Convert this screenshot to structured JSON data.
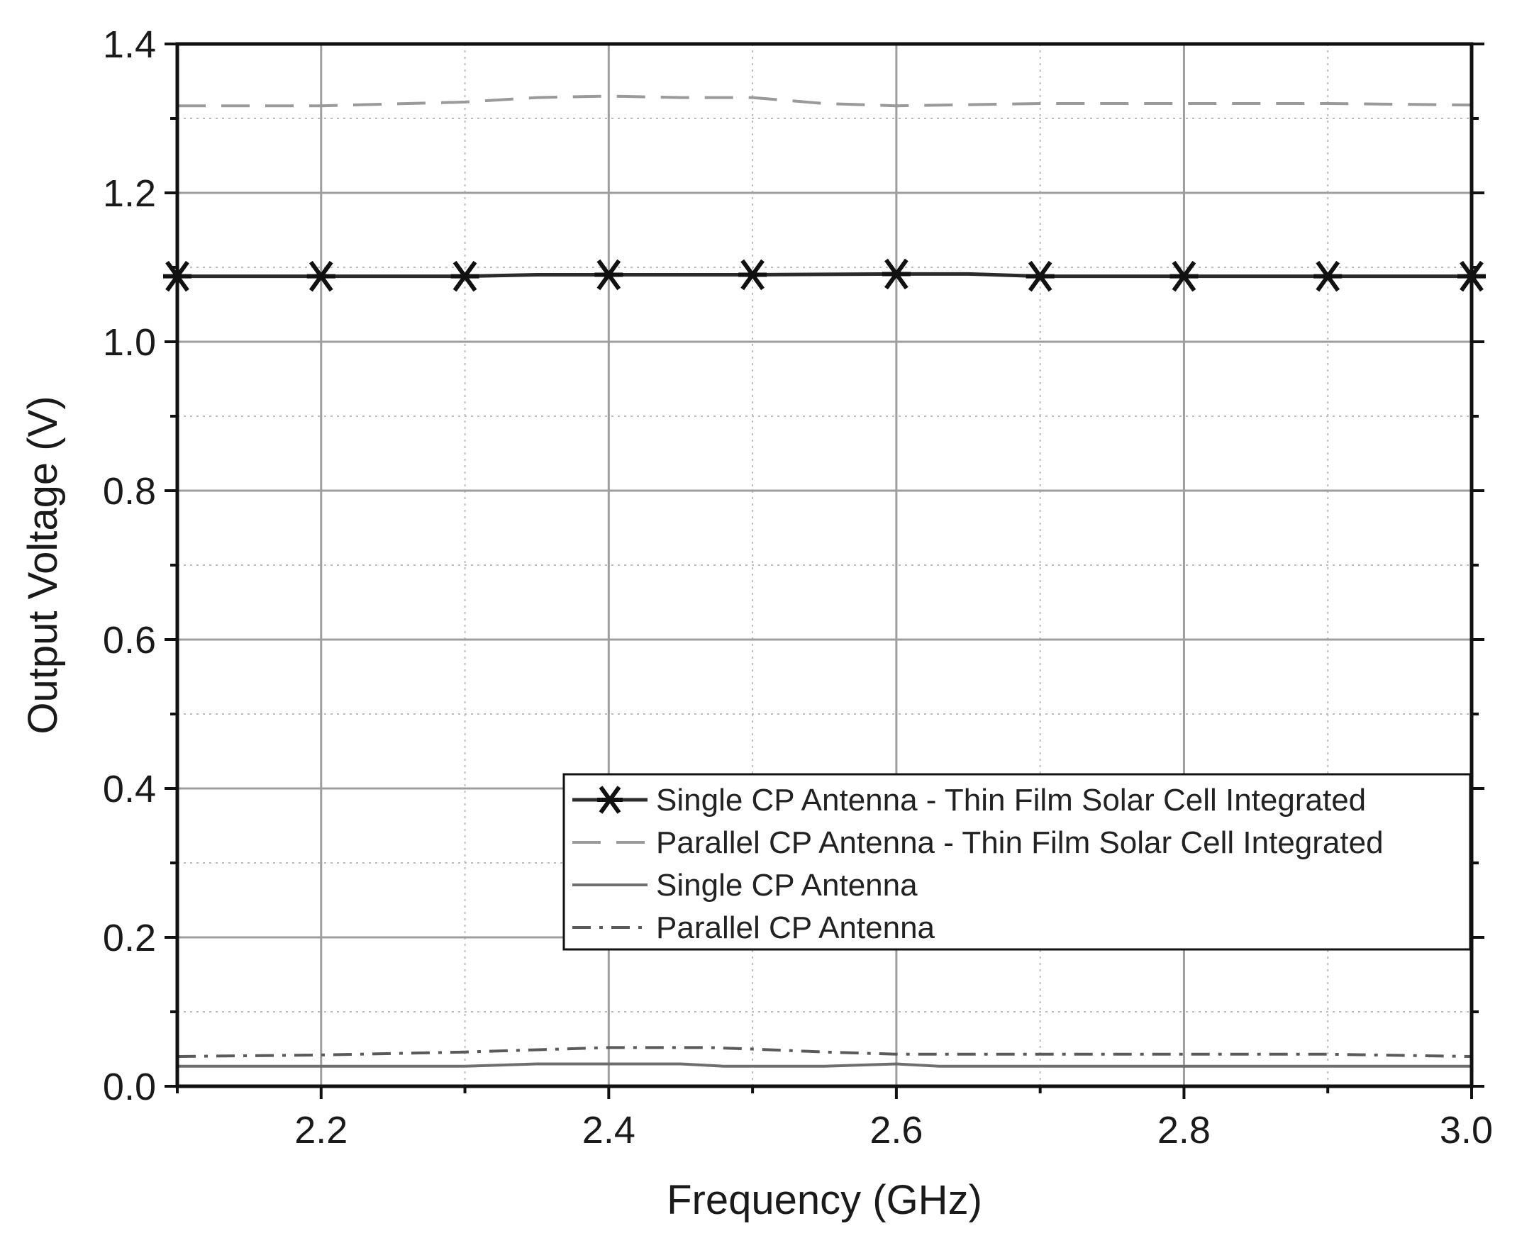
{
  "chart_data": {
    "type": "line",
    "xlabel": "Frequency (GHz)",
    "ylabel": "Output Voltage (V)",
    "xlim": [
      2.1,
      3.0
    ],
    "ylim": [
      0.0,
      1.4
    ],
    "xticks": [
      2.2,
      2.4,
      2.6,
      2.8,
      3.0
    ],
    "xtick_labels": [
      "2.2",
      "2.4",
      "2.6",
      "2.8",
      "3.0"
    ],
    "yticks": [
      0.0,
      0.2,
      0.4,
      0.6,
      0.8,
      1.0,
      1.2,
      1.4
    ],
    "ytick_labels": [
      "0.0",
      "0.2",
      "0.4",
      "0.6",
      "0.8",
      "1.0",
      "1.2",
      "1.4"
    ],
    "grid": true,
    "legend_position": "bottom-right",
    "series": [
      {
        "name": "Single CP Antenna - Thin Film Solar Cell Integrated",
        "style": "solid-star",
        "color": "#2b2b2b",
        "x": [
          2.1,
          2.2,
          2.3,
          2.35,
          2.4,
          2.5,
          2.6,
          2.65,
          2.7,
          2.8,
          2.9,
          3.0
        ],
        "y": [
          1.088,
          1.088,
          1.088,
          1.09,
          1.09,
          1.09,
          1.091,
          1.091,
          1.088,
          1.088,
          1.088,
          1.088
        ],
        "marker_x": [
          2.1,
          2.2,
          2.3,
          2.4,
          2.5,
          2.6,
          2.7,
          2.8,
          2.9,
          3.0
        ]
      },
      {
        "name": "Parallel CP Antenna - Thin Film Solar Cell Integrated",
        "style": "dashed",
        "color": "#9a9a9a",
        "x": [
          2.1,
          2.2,
          2.3,
          2.35,
          2.4,
          2.45,
          2.5,
          2.55,
          2.6,
          2.7,
          2.8,
          2.9,
          3.0
        ],
        "y": [
          1.317,
          1.317,
          1.322,
          1.328,
          1.33,
          1.328,
          1.328,
          1.32,
          1.317,
          1.32,
          1.32,
          1.32,
          1.318
        ]
      },
      {
        "name": "Single CP Antenna",
        "style": "solid",
        "color": "#6e6e6e",
        "x": [
          2.1,
          2.2,
          2.3,
          2.35,
          2.4,
          2.45,
          2.48,
          2.55,
          2.6,
          2.63,
          2.7,
          2.8,
          2.9,
          3.0
        ],
        "y": [
          0.027,
          0.027,
          0.027,
          0.03,
          0.03,
          0.03,
          0.027,
          0.027,
          0.03,
          0.027,
          0.027,
          0.027,
          0.027,
          0.027
        ]
      },
      {
        "name": "Parallel CP Antenna",
        "style": "dashdot",
        "color": "#5a5a5a",
        "x": [
          2.1,
          2.2,
          2.3,
          2.4,
          2.47,
          2.5,
          2.55,
          2.6,
          2.7,
          2.8,
          2.9,
          3.0
        ],
        "y": [
          0.04,
          0.042,
          0.046,
          0.052,
          0.052,
          0.05,
          0.046,
          0.043,
          0.043,
          0.043,
          0.043,
          0.04
        ]
      }
    ]
  }
}
